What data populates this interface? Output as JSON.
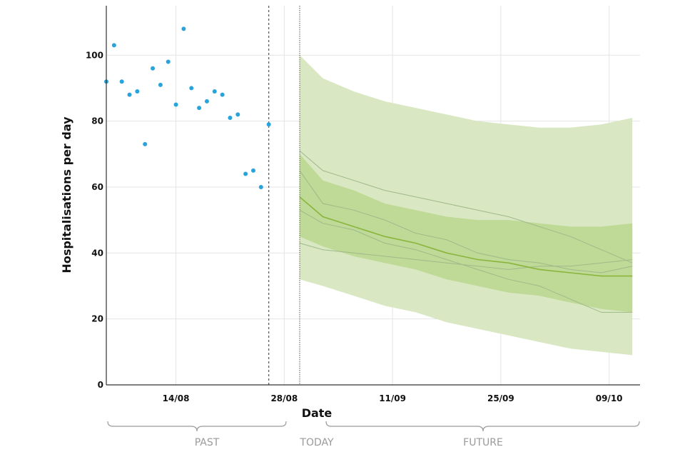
{
  "chart_data": {
    "type": "line",
    "xlabel": "Date",
    "ylabel": "Hospitalisations per day",
    "ylim": [
      0,
      115
    ],
    "y_ticks": [
      "0",
      "20",
      "40",
      "60",
      "80",
      "100"
    ],
    "x_range": [
      "2023-08-05",
      "2023-10-13"
    ],
    "x_ticks": [
      {
        "date": "2023-08-14",
        "label": "14/08"
      },
      {
        "date": "2023-08-28",
        "label": "28/08"
      },
      {
        "date": "2023-09-11",
        "label": "11/09"
      },
      {
        "date": "2023-09-25",
        "label": "25/09"
      },
      {
        "date": "2023-10-09",
        "label": "09/10"
      }
    ],
    "grid": true,
    "last_observation_date": "2023-08-26",
    "today_date": "2023-08-30",
    "observed": {
      "x": [
        "2023-08-05",
        "2023-08-06",
        "2023-08-07",
        "2023-08-08",
        "2023-08-09",
        "2023-08-10",
        "2023-08-11",
        "2023-08-12",
        "2023-08-13",
        "2023-08-14",
        "2023-08-15",
        "2023-08-16",
        "2023-08-17",
        "2023-08-18",
        "2023-08-19",
        "2023-08-20",
        "2023-08-21",
        "2023-08-22",
        "2023-08-23",
        "2023-08-24",
        "2023-08-25",
        "2023-08-26"
      ],
      "values": [
        92,
        103,
        92,
        88,
        89,
        73,
        96,
        91,
        98,
        85,
        108,
        90,
        84,
        86,
        89,
        88,
        81,
        82,
        64,
        65,
        60,
        79
      ]
    },
    "forecast": {
      "x": [
        "2023-08-30",
        "2023-09-02",
        "2023-09-06",
        "2023-09-10",
        "2023-09-14",
        "2023-09-18",
        "2023-09-22",
        "2023-09-26",
        "2023-09-30",
        "2023-10-04",
        "2023-10-08",
        "2023-10-12"
      ],
      "median": [
        57,
        51,
        48,
        45,
        43,
        40,
        38,
        37,
        35,
        34,
        33,
        33
      ],
      "inner_band": {
        "lower": [
          45,
          42,
          39,
          37,
          35,
          32,
          30,
          28,
          27,
          25,
          23,
          22
        ],
        "upper": [
          70,
          62,
          59,
          55,
          53,
          51,
          50,
          50,
          49,
          48,
          48,
          49
        ]
      },
      "outer_band": {
        "lower": [
          32,
          30,
          27,
          24,
          22,
          19,
          17,
          15,
          13,
          11,
          10,
          9
        ],
        "upper": [
          100,
          93,
          89,
          86,
          84,
          82,
          80,
          79,
          78,
          78,
          79,
          81
        ]
      },
      "sample_paths": [
        [
          71,
          65,
          62,
          59,
          57,
          55,
          53,
          51,
          48,
          45,
          41,
          37
        ],
        [
          65,
          55,
          53,
          50,
          46,
          44,
          40,
          38,
          37,
          35,
          34,
          36
        ],
        [
          43,
          41,
          40,
          39,
          38,
          37,
          36,
          35,
          36,
          36,
          37,
          38
        ],
        [
          53,
          49,
          47,
          43,
          41,
          38,
          35,
          32,
          30,
          26,
          22,
          22
        ]
      ]
    },
    "periods": [
      "PAST",
      "TODAY",
      "FUTURE"
    ],
    "colors": {
      "observed": "#29a3dc",
      "outer_band": "#d9e8c2",
      "inner_band": "#bfd996",
      "median": "#8ab53d",
      "paths": "#9fb98a",
      "grid": "#e4e4e4",
      "brace": "#9a9a9a",
      "marker_line": "#555555"
    }
  }
}
